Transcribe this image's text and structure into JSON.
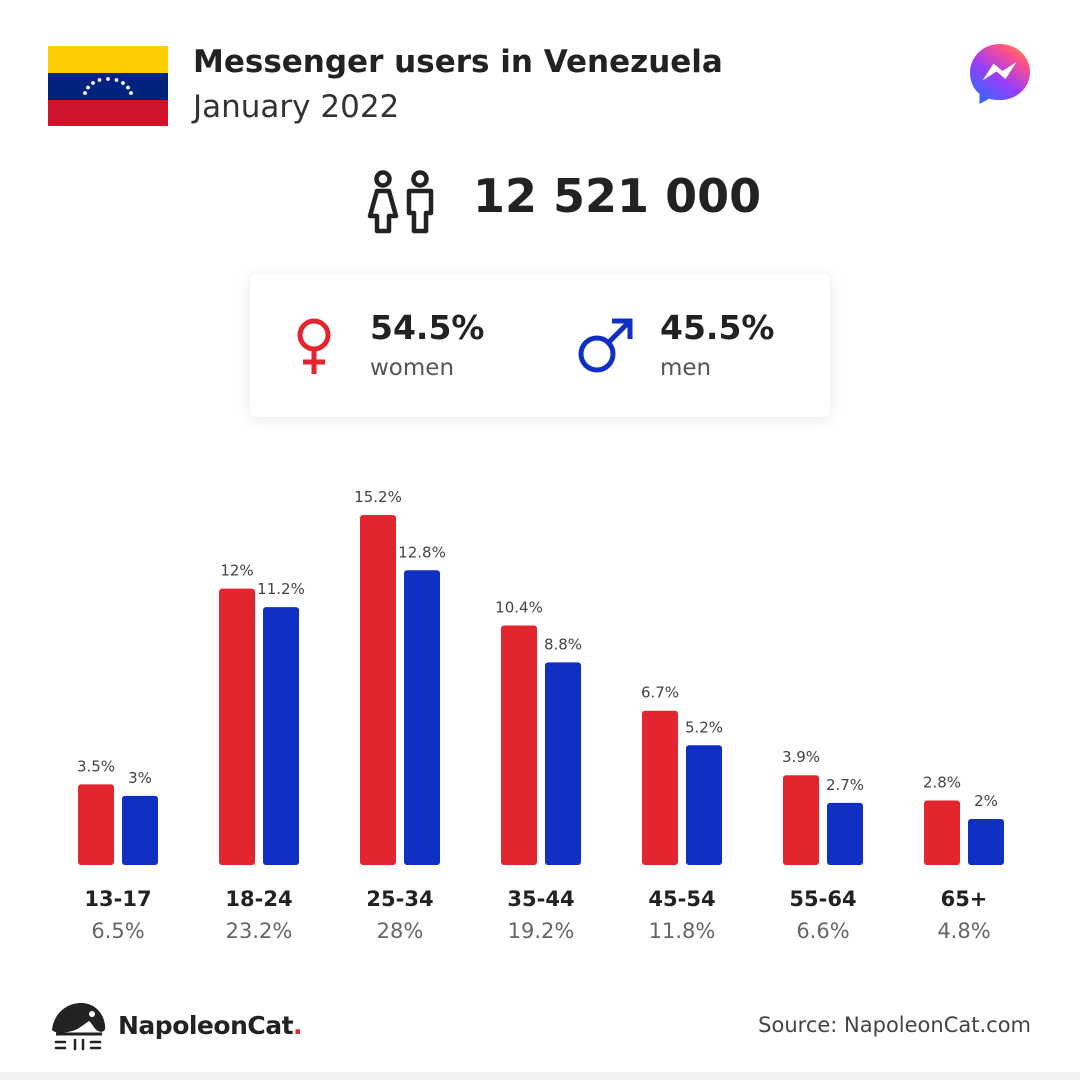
{
  "header": {
    "title": "Messenger users in Venezuela",
    "subtitle": "January 2022"
  },
  "totals": {
    "users": "12 521 000"
  },
  "gender": {
    "women": {
      "percent": "54.5%",
      "label": "women",
      "color": "#e32530"
    },
    "men": {
      "percent": "45.5%",
      "label": "men",
      "color": "#1030c4"
    }
  },
  "chart_data": {
    "type": "bar",
    "categories": [
      "13-17",
      "18-24",
      "25-34",
      "35-44",
      "45-54",
      "55-64",
      "65+"
    ],
    "category_totals": [
      "6.5%",
      "23.2%",
      "28%",
      "19.2%",
      "11.8%",
      "6.6%",
      "4.8%"
    ],
    "series": [
      {
        "values": [
          3.5,
          12,
          15.2,
          10.4,
          6.7,
          3.9,
          2.8
        ],
        "labels": [
          "3.5%",
          "12%",
          "15.2%",
          "10.4%",
          "6.7%",
          "3.9%",
          "2.8%"
        ],
        "color": "#e32530"
      },
      {
        "values": [
          3,
          11.2,
          12.8,
          8.8,
          5.2,
          2.7,
          2
        ],
        "labels": [
          "3%",
          "11.2%",
          "12.8%",
          "8.8%",
          "5.2%",
          "2.7%",
          "2%"
        ],
        "color": "#1030c4"
      }
    ],
    "ylim": [
      0,
      15.2
    ],
    "grid": false,
    "legend": "none"
  },
  "footer": {
    "brand": "NapoleonCat",
    "brand_dot": ".",
    "source": "Source: NapoleonCat.com"
  },
  "icons": {
    "flag": "venezuela-flag-icon",
    "app": "messenger-logo-icon",
    "users": "people-icon",
    "female": "female-symbol-icon",
    "male": "male-symbol-icon",
    "brand": "napoleoncat-logo-icon"
  }
}
